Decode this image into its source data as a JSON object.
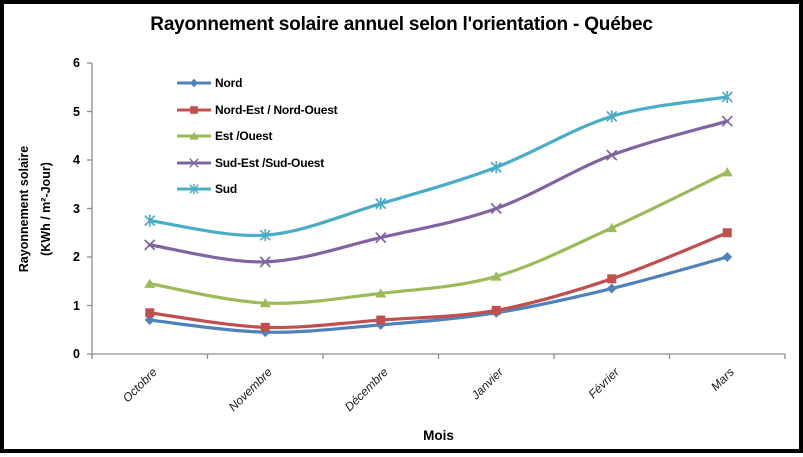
{
  "chart_data": {
    "type": "line",
    "title": "Rayonnement solaire annuel selon l'orientation - Québec",
    "xlabel": "Mois",
    "ylabel_lines": [
      "Rayonnement solaire",
      "(KWh / m²-Jour)"
    ],
    "categories": [
      "Octobre",
      "Novembre",
      "Décembre",
      "Janvier",
      "Février",
      "Mars"
    ],
    "y_ticks": [
      "0",
      "1",
      "2",
      "3",
      "4",
      "5",
      "6"
    ],
    "ylim": [
      0,
      6
    ],
    "grid": false,
    "line_smoothing": true,
    "legend_position": "inside-top-left",
    "axis_color": "#8C8C8C",
    "background_color": "#FFFFFF",
    "border_color": "#000000",
    "series": [
      {
        "name": "Nord",
        "color": "#4F81BD",
        "marker": "diamond",
        "values": [
          0.7,
          0.45,
          0.6,
          0.85,
          1.35,
          2.0
        ]
      },
      {
        "name": "Nord-Est / Nord-Ouest",
        "color": "#C0504D",
        "marker": "square",
        "values": [
          0.85,
          0.55,
          0.7,
          0.9,
          1.55,
          2.5
        ]
      },
      {
        "name": "Est /Ouest",
        "color": "#9BBB59",
        "marker": "triangle",
        "values": [
          1.45,
          1.05,
          1.25,
          1.6,
          2.6,
          3.75
        ]
      },
      {
        "name": "Sud-Est /Sud-Ouest",
        "color": "#8064A2",
        "marker": "x",
        "values": [
          2.25,
          1.9,
          2.4,
          3.0,
          4.1,
          4.8
        ]
      },
      {
        "name": "Sud",
        "color": "#4BACC6",
        "marker": "asterisk",
        "values": [
          2.75,
          2.45,
          3.1,
          3.85,
          4.9,
          5.3
        ]
      }
    ]
  }
}
